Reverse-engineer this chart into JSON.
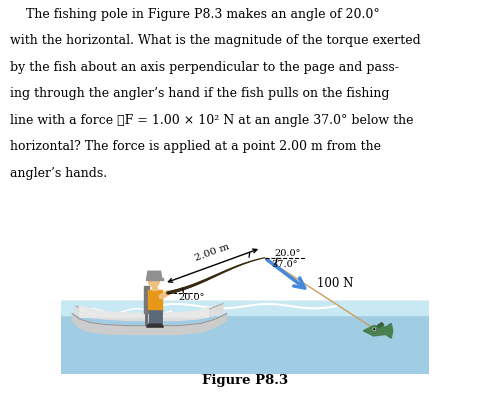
{
  "figure_label": "Figure P8.3",
  "force_mag": "100 N",
  "pole_length_label": "2.00 m",
  "label_angle_top": "20.0°",
  "label_angle_force": "37.0°",
  "label_angle_base": "20.0°",
  "bg_color": "#ffffff",
  "water_top_color": "#c8e8f4",
  "water_bot_color": "#a0cce4",
  "boat_body_color": "#cccccc",
  "boat_inner_color": "#e8e8e8",
  "boat_rim_color": "#bbbbbb",
  "rod_color": "#3a2a10",
  "line_color": "#c8a060",
  "force_arrow_color": "#4488dd",
  "angler_shirt": "#e89818",
  "angler_pants": "#5a6878",
  "angler_skin": "#f0c080",
  "angler_hat": "#909090",
  "fish_color": "#4a8050",
  "text_color": "#000000",
  "para_line1": "    The fishing pole in Figure P8.3 makes an angle of 20.0°",
  "para_line2": "with the horizontal. What is the magnitude of the torque exerted",
  "para_line3": "by the fish about an axis perpendicular to the page and pass-",
  "para_line4": "ing through the angler’s hand if the fish pulls on the fishing",
  "para_line5": "line with a force ⃗F = 1.00 × 10² N at an angle 37.0° below the",
  "para_line6": "horizontal? The force is applied at a point 2.00 m from the",
  "para_line7": "angler’s hands."
}
